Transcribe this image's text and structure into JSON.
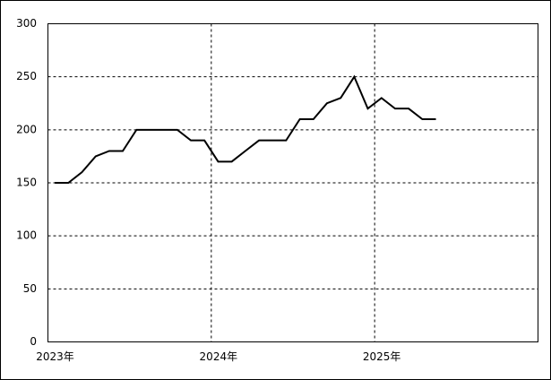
{
  "chart_data": {
    "type": "line",
    "x": [
      2023.042,
      2023.125,
      2023.208,
      2023.292,
      2023.375,
      2023.458,
      2023.542,
      2023.625,
      2023.708,
      2023.792,
      2023.875,
      2023.958,
      2024.042,
      2024.125,
      2024.208,
      2024.292,
      2024.375,
      2024.458,
      2024.542,
      2024.625,
      2024.708,
      2024.792,
      2024.875,
      2024.958,
      2025.042,
      2025.125,
      2025.208,
      2025.292,
      2025.375
    ],
    "series": [
      {
        "color": "#000000",
        "values": [
          150,
          150,
          160,
          175,
          180,
          180,
          200,
          200,
          200,
          200,
          190,
          190,
          170,
          170,
          180,
          190,
          190,
          190,
          210,
          210,
          225,
          230,
          250,
          220,
          230,
          220,
          220,
          210,
          210
        ]
      }
    ],
    "xlim": [
      2023,
      2026
    ],
    "xticks": [
      {
        "value": 2023,
        "label": "2023年"
      },
      {
        "value": 2024,
        "label": "2024年"
      },
      {
        "value": 2025,
        "label": "2025年"
      }
    ],
    "ylim": [
      0,
      300
    ],
    "yticks": [
      0,
      50,
      100,
      150,
      200,
      250,
      300
    ],
    "grid": true
  }
}
